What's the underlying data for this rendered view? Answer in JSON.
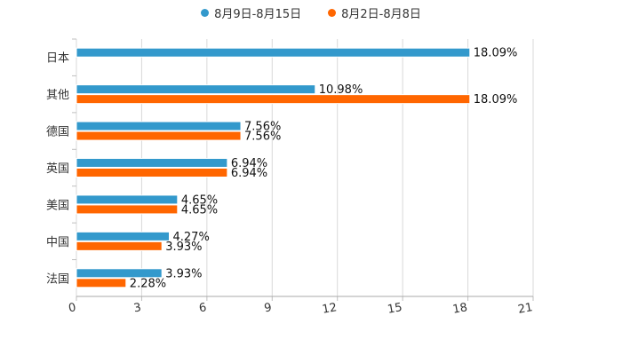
{
  "chart_data": {
    "type": "bar",
    "orientation": "horizontal",
    "title": "",
    "xlabel": "",
    "ylabel": "",
    "xlim": [
      0,
      21
    ],
    "x_ticks": [
      0,
      3,
      6,
      9,
      12,
      15,
      18,
      21
    ],
    "grid": true,
    "legend_position": "top-center",
    "categories": [
      "日本",
      "其他",
      "德国",
      "英国",
      "美国",
      "中国",
      "法国"
    ],
    "series": [
      {
        "name": "8月9日-8月15日",
        "color": "#3399cc",
        "values": [
          18.09,
          10.98,
          7.56,
          6.94,
          4.65,
          4.27,
          3.93
        ],
        "labels": [
          "18.09%",
          "10.98%",
          "7.56%",
          "6.94%",
          "4.65%",
          "4.27%",
          "3.93%"
        ]
      },
      {
        "name": "8月2日-8月8日",
        "color": "#ff6600",
        "values": [
          null,
          18.09,
          7.56,
          6.94,
          4.65,
          3.93,
          2.28
        ],
        "labels": [
          "",
          "18.09%",
          "7.56%",
          "6.94%",
          "4.65%",
          "3.93%",
          "2.28%"
        ]
      }
    ]
  }
}
